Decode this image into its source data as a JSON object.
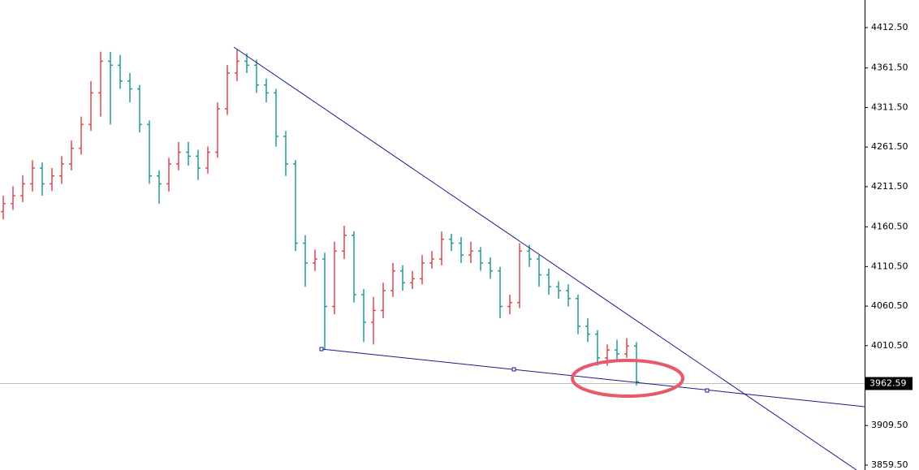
{
  "chart_data": {
    "type": "ohlc",
    "open": [
      4180,
      4190,
      4200,
      4215,
      4235,
      4215,
      4225,
      4240,
      4260,
      4290,
      4330,
      4370,
      4365,
      4345,
      4335,
      4290,
      4225,
      4215,
      4240,
      4255,
      4250,
      4235,
      4255,
      4310,
      4355,
      4370,
      4365,
      4340,
      4330,
      4275,
      4240,
      4140,
      4115,
      4120,
      4060,
      4130,
      4150,
      4075,
      4040,
      4055,
      4080,
      4105,
      4090,
      4095,
      4115,
      4120,
      4145,
      4140,
      4125,
      4130,
      4115,
      4105,
      4060,
      4065,
      4130,
      4120,
      4100,
      4085,
      4080,
      4070,
      4035,
      4025,
      3995,
      4005,
      4000,
      4010
    ],
    "high": [
      4200,
      4212,
      4226,
      4245,
      4242,
      4235,
      4250,
      4270,
      4300,
      4345,
      4382,
      4382,
      4378,
      4355,
      4340,
      4295,
      4232,
      4248,
      4268,
      4268,
      4258,
      4262,
      4318,
      4365,
      4385,
      4380,
      4372,
      4348,
      4335,
      4282,
      4245,
      4150,
      4132,
      4128,
      4142,
      4162,
      4155,
      4082,
      4072,
      4090,
      4115,
      4112,
      4105,
      4125,
      4130,
      4155,
      4152,
      4148,
      4142,
      4135,
      4122,
      4110,
      4075,
      4140,
      4138,
      4125,
      4108,
      4092,
      4088,
      4075,
      4045,
      4030,
      4012,
      4018,
      4020,
      4015
    ],
    "low": [
      4170,
      4182,
      4192,
      4205,
      4200,
      4206,
      4215,
      4232,
      4252,
      4282,
      4300,
      4290,
      4335,
      4318,
      4280,
      4215,
      4190,
      4205,
      4232,
      4238,
      4220,
      4228,
      4248,
      4302,
      4345,
      4355,
      4330,
      4318,
      4262,
      4225,
      4130,
      4085,
      4105,
      4005,
      4050,
      4120,
      4065,
      4015,
      4012,
      4045,
      4072,
      4080,
      4082,
      4088,
      4108,
      4112,
      4130,
      4115,
      4115,
      4105,
      4095,
      4045,
      4050,
      4058,
      4110,
      4085,
      4075,
      4070,
      4060,
      4025,
      4015,
      3985,
      3985,
      3990,
      3995,
      3960
    ],
    "close": [
      4190,
      4200,
      4215,
      4235,
      4215,
      4225,
      4240,
      4260,
      4290,
      4330,
      4370,
      4365,
      4345,
      4335,
      4290,
      4225,
      4215,
      4240,
      4255,
      4250,
      4235,
      4255,
      4310,
      4355,
      4370,
      4365,
      4340,
      4330,
      4275,
      4240,
      4140,
      4115,
      4120,
      4060,
      4130,
      4150,
      4075,
      4040,
      4055,
      4080,
      4105,
      4090,
      4095,
      4115,
      4120,
      4145,
      4140,
      4125,
      4130,
      4115,
      4105,
      4060,
      4065,
      4130,
      4120,
      4100,
      4085,
      4080,
      4070,
      4035,
      4025,
      3995,
      4005,
      4000,
      4010,
      3965
    ],
    "up_color": "#e0474c",
    "down_color": "#1f9c9c",
    "ylim": [
      3853.3,
      4447.4
    ],
    "yticks": [
      {
        "value": 4412.5,
        "label": "4412.50"
      },
      {
        "value": 4361.5,
        "label": "4361.50"
      },
      {
        "value": 4311.5,
        "label": "4311.50"
      },
      {
        "value": 4261.5,
        "label": "4261.50"
      },
      {
        "value": 4211.5,
        "label": "4211.50"
      },
      {
        "value": 4160.5,
        "label": "4160.50"
      },
      {
        "value": 4110.5,
        "label": "4110.50"
      },
      {
        "value": 4060.5,
        "label": "4060.50"
      },
      {
        "value": 4010.5,
        "label": "4010.50"
      },
      {
        "value": 3909.5,
        "label": "3909.50"
      },
      {
        "value": 3859.5,
        "label": "3859.50"
      }
    ],
    "current_price": {
      "value": 3962.59,
      "label": "3962.59"
    }
  }
}
